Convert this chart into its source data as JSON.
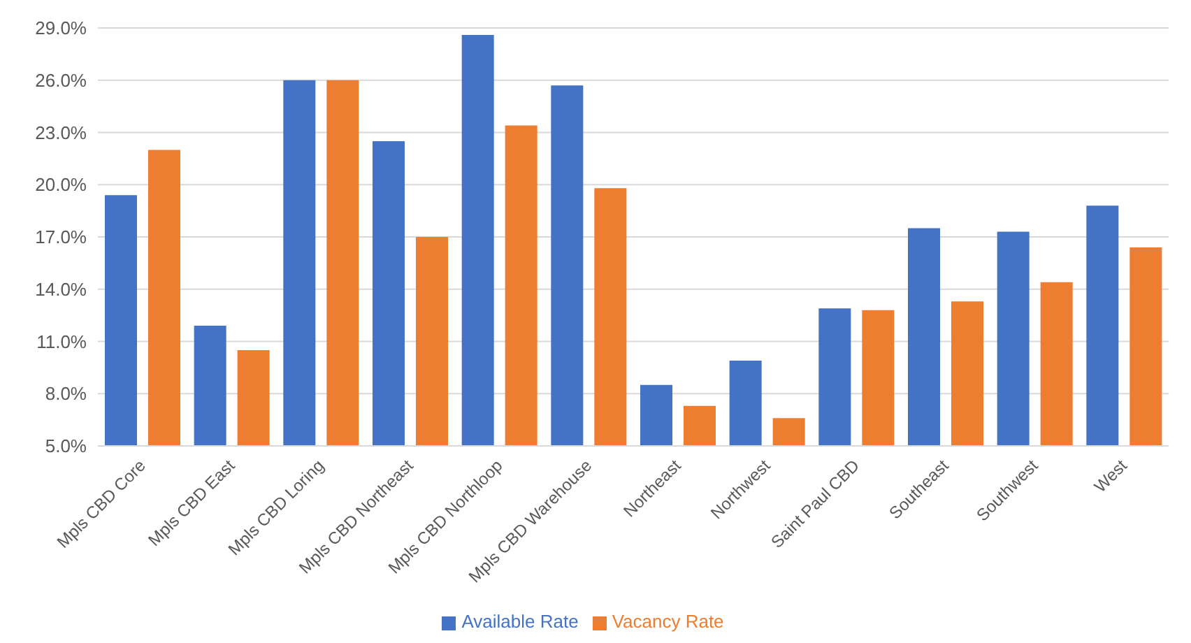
{
  "chart_data": {
    "type": "bar",
    "categories": [
      "Mpls CBD Core",
      "Mpls CBD East",
      "Mpls CBD Loring",
      "Mpls CBD Northeast",
      "Mpls CBD Northloop",
      "Mpls CBD Warehouse",
      "Northeast",
      "Northwest",
      "Saint Paul CBD",
      "Southeast",
      "Southwest",
      "West"
    ],
    "series": [
      {
        "name": "Available Rate",
        "color": "#4472c4",
        "values": [
          19.4,
          11.9,
          26.0,
          22.5,
          28.6,
          25.7,
          8.5,
          9.9,
          12.9,
          17.5,
          17.3,
          18.8
        ]
      },
      {
        "name": "Vacancy Rate",
        "color": "#ed7d31",
        "values": [
          22.0,
          10.5,
          26.0,
          17.0,
          23.4,
          19.8,
          7.3,
          6.6,
          12.8,
          13.3,
          14.4,
          16.4
        ]
      }
    ],
    "ylim": [
      5,
      29
    ],
    "yticks": [
      {
        "value": 5,
        "label": "5.0%"
      },
      {
        "value": 8,
        "label": "8.0%"
      },
      {
        "value": 11,
        "label": "11.0%"
      },
      {
        "value": 14,
        "label": "14.0%"
      },
      {
        "value": 17,
        "label": "17.0%"
      },
      {
        "value": 20,
        "label": "20.0%"
      },
      {
        "value": 23,
        "label": "23.0%"
      },
      {
        "value": 26,
        "label": "26.0%"
      },
      {
        "value": 29,
        "label": "29.0%"
      }
    ],
    "grid": "y",
    "legend": "bottom"
  }
}
